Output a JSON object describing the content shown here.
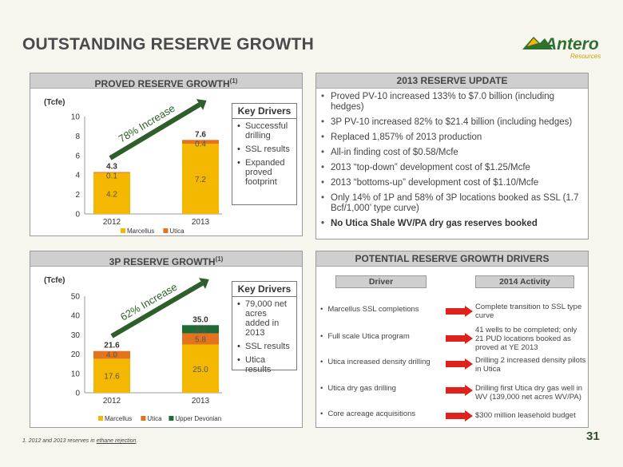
{
  "title": "OUTSTANDING RESERVE GROWTH",
  "logo": {
    "word": "Antero",
    "sub": "Resources"
  },
  "proved": {
    "header": "PROVED RESERVE GROWTH",
    "header_sup": "(1)",
    "unit": "(Tcfe)",
    "arrow_label": "78% Increase",
    "key_drivers": {
      "title": "Key Drivers",
      "items": [
        "Successful drilling",
        "SSL results",
        "Expanded proved footprint"
      ]
    }
  },
  "threep": {
    "header": "3P RESERVE GROWTH",
    "header_sup": "(1)",
    "unit": "(Tcfe)",
    "arrow_label": "62% Increase",
    "key_drivers": {
      "title": "Key Drivers",
      "items": [
        "79,000 net acres added in 2013",
        "SSL results",
        "Utica results"
      ]
    }
  },
  "update": {
    "header": "2013 RESERVE UPDATE",
    "items": [
      "Proved PV-10 increased 133% to $7.0 billion (including hedges)",
      "3P PV-10 increased 82% to $21.4 billion (including hedges)",
      "Replaced 1,857% of 2013 production",
      "All-in finding cost of $0.58/Mcfe",
      "2013 “top-down” development cost of $1.25/Mcfe",
      "2013 “bottoms-up” development cost of $1.10/Mcfe",
      "Only 14% of 1P and 58% of 3P locations booked as SSL (1.7 Bcf/1,000’ type curve)",
      "No Utica Shale WV/PA dry gas reserves booked"
    ]
  },
  "drivers": {
    "header": "POTENTIAL RESERVE GROWTH DRIVERS",
    "col_driver": "Driver",
    "col_activity": "2014 Activity",
    "rows": [
      {
        "driver": "Marcellus SSL completions",
        "activity": "Complete transition to SSL type curve"
      },
      {
        "driver": "Full scale Utica program",
        "activity": "41 wells to be completed; only 21 PUD locations booked as proved at YE 2013"
      },
      {
        "driver": "Utica increased density drilling",
        "activity": "Drilling 2 increased density pilots in Utica"
      },
      {
        "driver": "Utica dry gas drilling",
        "activity": "Drilling first Utica dry gas well in WV (139,000 net acres WV/PA)"
      },
      {
        "driver": "Core acreage acquisitions",
        "activity": "$300 million leasehold budget"
      }
    ],
    "arrow_color": "#e0201b"
  },
  "footnote": {
    "prefix": "1.  2012 and 2013 reserves in ",
    "link": "ethane rejection",
    "suffix": "."
  },
  "page_number": "31",
  "colors": {
    "marcellus": "#f5b800",
    "utica": "#e3731f",
    "upper_devonian": "#1f6b35",
    "arrow": "#2e5e2a"
  },
  "chart_data": [
    {
      "type": "bar",
      "title": "PROVED RESERVE GROWTH",
      "ylabel": "(Tcfe)",
      "ylim": [
        0,
        10
      ],
      "yticks": [
        0,
        2,
        4,
        6,
        8,
        10
      ],
      "categories": [
        "2012",
        "2013"
      ],
      "series": [
        {
          "name": "Marcellus",
          "values": [
            4.2,
            7.2
          ],
          "labels": [
            "4.2",
            "7.2"
          ]
        },
        {
          "name": "Utica",
          "values": [
            0.1,
            0.4
          ],
          "labels": [
            "0.1",
            "0.4"
          ]
        }
      ],
      "totals": [
        "4.3",
        "7.6"
      ],
      "legend": "bottom"
    },
    {
      "type": "bar",
      "title": "3P RESERVE GROWTH",
      "ylabel": "(Tcfe)",
      "ylim": [
        0,
        50
      ],
      "yticks": [
        0,
        10,
        20,
        30,
        40,
        50
      ],
      "categories": [
        "2012",
        "2013"
      ],
      "series": [
        {
          "name": "Marcellus",
          "values": [
            17.6,
            25.0
          ],
          "labels": [
            "17.6",
            "25.0"
          ]
        },
        {
          "name": "Utica",
          "values": [
            4.0,
            5.8
          ],
          "labels": [
            "4.0",
            "5.8"
          ]
        },
        {
          "name": "Upper Devonian",
          "values": [
            0,
            4.2
          ],
          "labels": [
            "",
            "4.2"
          ]
        }
      ],
      "totals": [
        "21.6",
        "35.0"
      ],
      "legend": "bottom"
    }
  ]
}
